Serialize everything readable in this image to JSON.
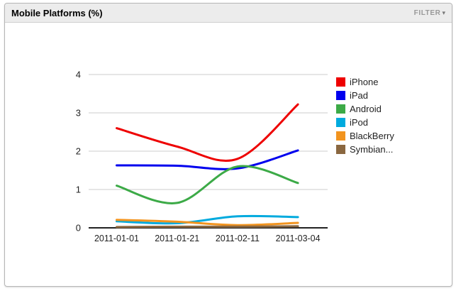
{
  "widget": {
    "title": "Mobile Platforms (%)",
    "filter_label": "FILTER",
    "filter_caret": "▾"
  },
  "chart_data": {
    "type": "line",
    "curve": "smooth",
    "title": "Mobile Platforms (%)",
    "xlabel": "",
    "ylabel": "",
    "grid": true,
    "legend_position": "right",
    "ylim": [
      0,
      4
    ],
    "y_ticks": [
      0,
      1,
      2,
      3,
      4
    ],
    "categories": [
      "2011-01-01",
      "2011-01-21",
      "2011-02-11",
      "2011-03-04"
    ],
    "series": [
      {
        "name": "iPhone",
        "color": "#ee0000",
        "values": [
          2.6,
          2.12,
          1.8,
          3.22
        ]
      },
      {
        "name": "iPad",
        "color": "#0000ee",
        "values": [
          1.63,
          1.62,
          1.55,
          2.02
        ]
      },
      {
        "name": "Android",
        "color": "#3caa47",
        "values": [
          1.1,
          0.65,
          1.6,
          1.17
        ]
      },
      {
        "name": "iPod",
        "color": "#00aade",
        "values": [
          0.17,
          0.12,
          0.3,
          0.28
        ]
      },
      {
        "name": "BlackBerry",
        "color": "#f2941f",
        "values": [
          0.21,
          0.16,
          0.07,
          0.13
        ]
      },
      {
        "name": "Symbian...",
        "color": "#8a6740",
        "values": [
          0.02,
          0.03,
          0.03,
          0.04
        ]
      }
    ],
    "colors": {
      "gridline": "#cccccc",
      "axis": "#222222",
      "tick_text": "#222222",
      "legend_text": "#222222"
    }
  }
}
